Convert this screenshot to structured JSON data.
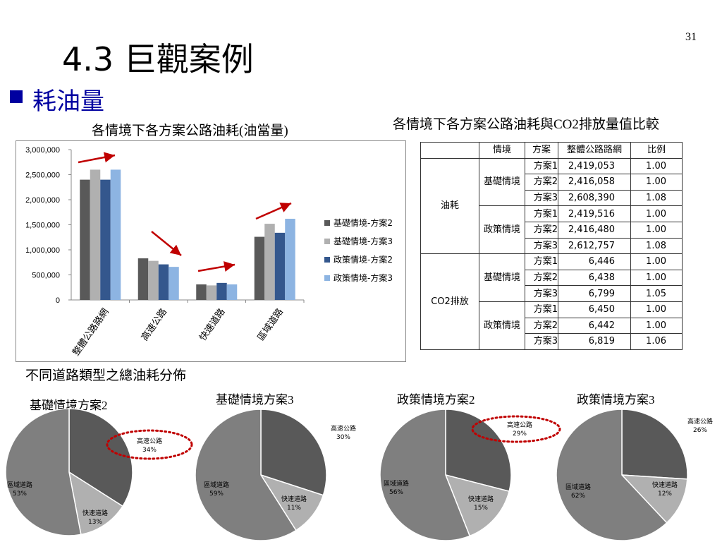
{
  "page_number": "31",
  "title": "4.3 巨觀案例",
  "subtitle": "耗油量",
  "bar_chart_title": "各情境下各方案公路油耗(油當量)",
  "table_title": "各情境下各方案公路油耗與CO2排放量值比較",
  "pie_section_title": "不同道路類型之總油耗分佈",
  "colors": {
    "bar_series": [
      "#595959",
      "#b0b0b0",
      "#34578d",
      "#8db4e2"
    ],
    "arrow": "#c00000",
    "highlight": "#c00000",
    "pie_slices": [
      "#595959",
      "#b0b0b0",
      "#7f7f7f"
    ]
  },
  "table": {
    "headers": [
      "情境",
      "方案",
      "整體公路路網",
      "比例"
    ],
    "groups": [
      {
        "category": "油耗",
        "scenarios": [
          {
            "name": "基礎情境",
            "rows": [
              [
                "方案1",
                "2,419,053",
                "1.00"
              ],
              [
                "方案2",
                "2,416,058",
                "1.00"
              ],
              [
                "方案3",
                "2,608,390",
                "1.08"
              ]
            ]
          },
          {
            "name": "政策情境",
            "rows": [
              [
                "方案1",
                "2,419,516",
                "1.00"
              ],
              [
                "方案2",
                "2,416,480",
                "1.00"
              ],
              [
                "方案3",
                "2,612,757",
                "1.08"
              ]
            ]
          }
        ]
      },
      {
        "category": "CO2排放",
        "scenarios": [
          {
            "name": "基礎情境",
            "rows": [
              [
                "方案1",
                "6,446",
                "1.00"
              ],
              [
                "方案2",
                "6,438",
                "1.00"
              ],
              [
                "方案3",
                "6,799",
                "1.05"
              ]
            ]
          },
          {
            "name": "政策情境",
            "rows": [
              [
                "方案1",
                "6,450",
                "1.00"
              ],
              [
                "方案2",
                "6,442",
                "1.00"
              ],
              [
                "方案3",
                "6,819",
                "1.06"
              ]
            ]
          }
        ]
      }
    ]
  },
  "chart_data": [
    {
      "type": "bar",
      "title": "各情境下各方案公路油耗(油當量)",
      "categories": [
        "整體公路路網",
        "高速公路",
        "快速道路",
        "區域道路"
      ],
      "series": [
        {
          "name": "基礎情境-方案2",
          "values": [
            2400000,
            830000,
            310000,
            1260000
          ]
        },
        {
          "name": "基礎情境-方案3",
          "values": [
            2600000,
            780000,
            290000,
            1520000
          ]
        },
        {
          "name": "政策情境-方案2",
          "values": [
            2400000,
            710000,
            340000,
            1340000
          ]
        },
        {
          "name": "政策情境-方案3",
          "values": [
            2600000,
            660000,
            310000,
            1620000
          ]
        }
      ],
      "ylim": [
        0,
        3000000
      ],
      "yticks": [
        "0",
        "500,000",
        "1,000,000",
        "1,500,000",
        "2,000,000",
        "2,500,000",
        "3,000,000"
      ],
      "legend": "right",
      "grid": false
    },
    {
      "type": "pie",
      "title": "基礎情境方案2",
      "labels": [
        "高速公路",
        "快速道路",
        "區域道路"
      ],
      "values": [
        34,
        13,
        53
      ],
      "value_labels": [
        "34%",
        "13%",
        "53%"
      ],
      "highlight": "高速公路"
    },
    {
      "type": "pie",
      "title": "基礎情境方案3",
      "labels": [
        "高速公路",
        "快速道路",
        "區域道路"
      ],
      "values": [
        30,
        11,
        59
      ],
      "value_labels": [
        "30%",
        "11%",
        "59%"
      ]
    },
    {
      "type": "pie",
      "title": "政策情境方案2",
      "labels": [
        "高速公路",
        "快速道路",
        "區域道路"
      ],
      "values": [
        29,
        15,
        56
      ],
      "value_labels": [
        "29%",
        "15%",
        "56%"
      ],
      "highlight": "高速公路"
    },
    {
      "type": "pie",
      "title": "政策情境方案3",
      "labels": [
        "高速公路",
        "快速道路",
        "區域道路"
      ],
      "values": [
        26,
        12,
        62
      ],
      "value_labels": [
        "26%",
        "12%",
        "62%"
      ]
    }
  ]
}
